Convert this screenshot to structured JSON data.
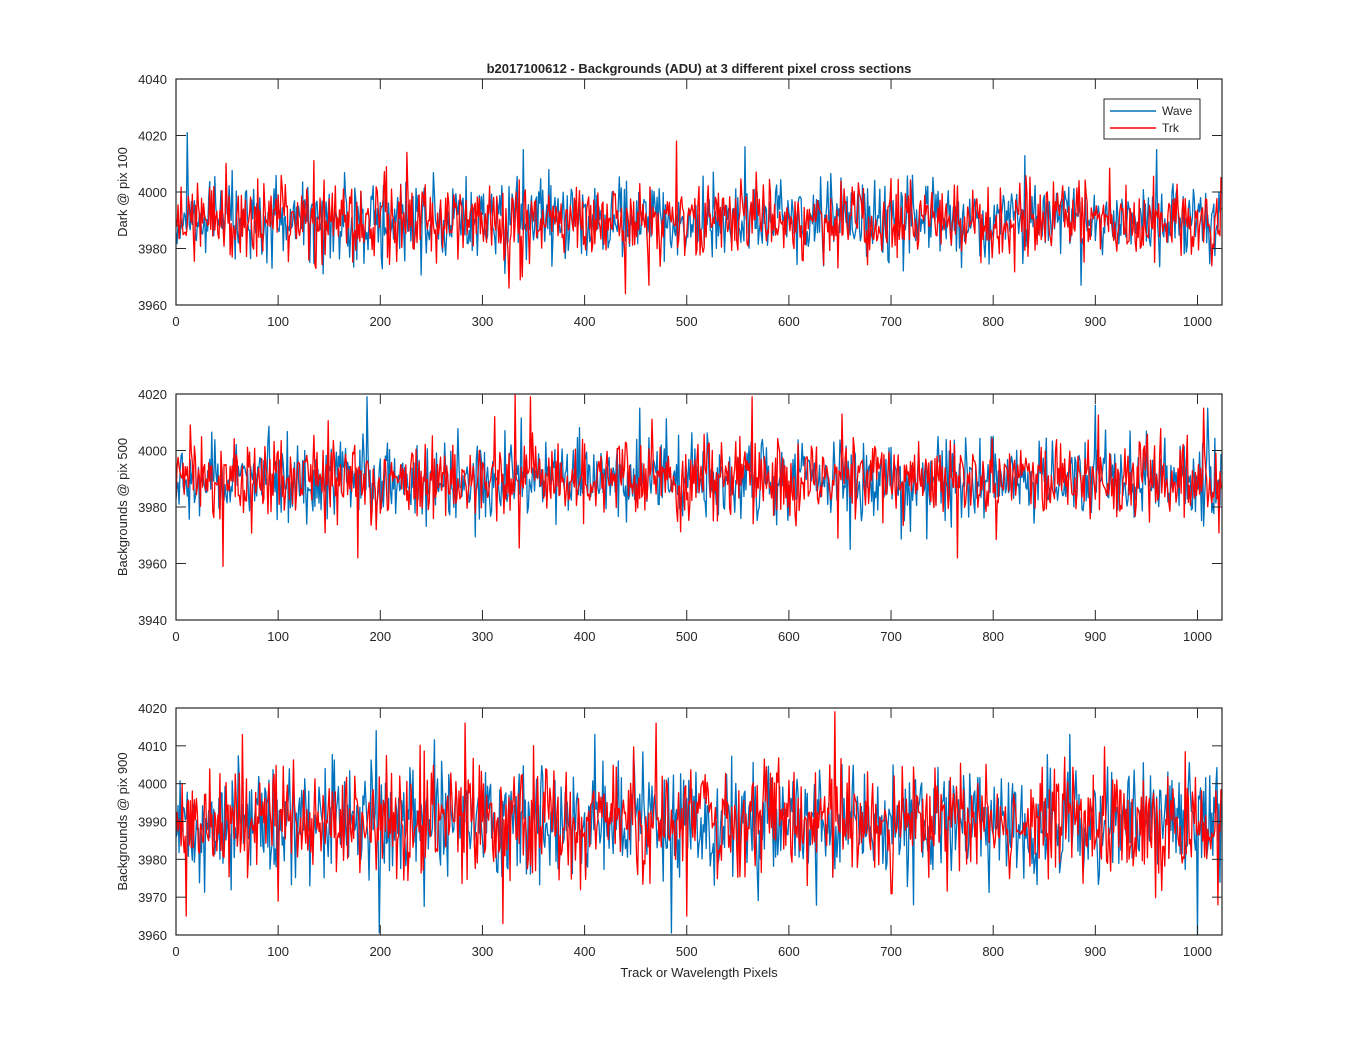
{
  "chart_data": {
    "type": "line",
    "title": "b2017100612 - Backgrounds (ADU) at 3 different pixel cross sections",
    "xlabel": "Track or Wavelength Pixels",
    "xlim": [
      0,
      1024
    ],
    "xticks": [
      0,
      100,
      200,
      300,
      400,
      500,
      600,
      700,
      800,
      900,
      1000
    ],
    "sample_count": 1024,
    "legend": {
      "location": "top-right",
      "entries": [
        {
          "name": "Wave",
          "color": "#0072BD"
        },
        {
          "name": "Trk",
          "color": "#FF0000"
        }
      ]
    },
    "panels": [
      {
        "ylabel": "Dark @ pix 100",
        "ylim": [
          3960,
          4040
        ],
        "yticks": [
          3960,
          3980,
          4000,
          4020,
          4040
        ],
        "series": [
          {
            "name": "Wave",
            "color": "#0072BD",
            "mean": 3990,
            "std": 7,
            "min": 3966,
            "max": 4021,
            "peaks": [
              [
                11,
                4021
              ],
              [
                557,
                4016
              ],
              [
                340,
                4015
              ],
              [
                960,
                4015
              ],
              [
                886,
                3967
              ]
            ]
          },
          {
            "name": "Trk",
            "color": "#FF0000",
            "mean": 3990,
            "std": 6.5,
            "min": 3964,
            "max": 4018,
            "peaks": [
              [
                490,
                4018
              ],
              [
                440,
                3964
              ],
              [
                326,
                3966
              ],
              [
                463,
                3967
              ],
              [
                226,
                4014
              ]
            ]
          }
        ]
      },
      {
        "ylabel": "Backgrounds @ pix 500",
        "ylim": [
          3940,
          4020
        ],
        "yticks": [
          3940,
          3960,
          3980,
          4000,
          4020
        ],
        "series": [
          {
            "name": "Wave",
            "color": "#0072BD",
            "mean": 3990,
            "std": 7,
            "min": 3965,
            "max": 4020,
            "peaks": [
              [
                187,
                4019
              ],
              [
                1010,
                4015
              ],
              [
                454,
                4015
              ],
              [
                660,
                3965
              ],
              [
                900,
                4016
              ]
            ]
          },
          {
            "name": "Trk",
            "color": "#FF0000",
            "mean": 3990,
            "std": 7,
            "min": 3959,
            "max": 4020,
            "peaks": [
              [
                46,
                3959
              ],
              [
                332,
                4020
              ],
              [
                347,
                4019
              ],
              [
                564,
                4019
              ],
              [
                178,
                3962
              ],
              [
                765,
                3962
              ],
              [
                1006,
                4015
              ]
            ]
          }
        ]
      },
      {
        "ylabel": "Backgrounds @ pix 900",
        "ylim": [
          3960,
          4020
        ],
        "yticks": [
          3960,
          3970,
          3980,
          3990,
          4000,
          4010,
          4020
        ],
        "series": [
          {
            "name": "Wave",
            "color": "#0072BD",
            "mean": 3990,
            "std": 7.5,
            "min": 3960,
            "max": 4014,
            "peaks": [
              [
                1000,
                3960
              ],
              [
                196,
                4014
              ],
              [
                410,
                4013
              ],
              [
                875,
                4013
              ]
            ]
          },
          {
            "name": "Trk",
            "color": "#FF0000",
            "mean": 3990,
            "std": 7.5,
            "min": 3963,
            "max": 4019,
            "peaks": [
              [
                645,
                4019
              ],
              [
                283,
                4016
              ],
              [
                470,
                4016
              ],
              [
                320,
                3963
              ],
              [
                500,
                3965
              ],
              [
                10,
                3965
              ],
              [
                1020,
                3968
              ]
            ]
          }
        ]
      }
    ]
  }
}
